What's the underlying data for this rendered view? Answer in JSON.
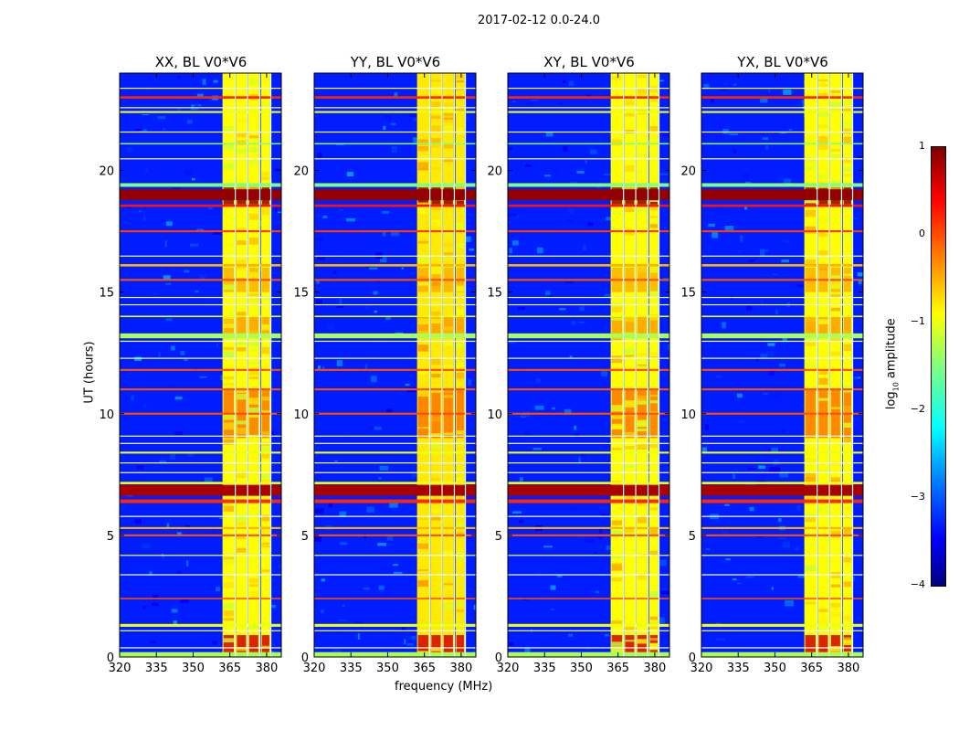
{
  "suptitle": "2017-02-12 0.0-24.0",
  "chart_data": {
    "type": "heatmap",
    "title": "2017-02-12 0.0-24.0",
    "xlabel": "frequency (MHz)",
    "ylabel": "UT (hours)",
    "xlim": [
      320,
      386
    ],
    "ylim": [
      0,
      24
    ],
    "xticks": [
      320,
      335,
      350,
      365,
      380
    ],
    "yticks": [
      0,
      5,
      10,
      15,
      20
    ],
    "panels": [
      {
        "title": "XX, BL V0*V6",
        "band_level": -0.9
      },
      {
        "title": "YY, BL V0*V6",
        "band_level": -0.8
      },
      {
        "title": "XY, BL V0*V6",
        "band_level": -0.9
      },
      {
        "title": "YX, BL V0*V6",
        "band_level": -0.9
      }
    ],
    "background_level": -3.3,
    "vertical_bands": [
      [
        362,
        367
      ],
      [
        367.5,
        372
      ],
      [
        372.5,
        377
      ],
      [
        377.7,
        381.5
      ]
    ],
    "band_patches": [
      {
        "t0": 0.15,
        "t1": 0.9,
        "v": 0.6
      },
      {
        "t0": 9.0,
        "t1": 11.0,
        "v": -0.2
      },
      {
        "t0": 13.3,
        "t1": 14.0,
        "v": -0.4
      },
      {
        "t0": 15.0,
        "t1": 16.0,
        "v": -0.5
      },
      {
        "t0": 18.6,
        "t1": 19.3,
        "v": 0.95
      }
    ],
    "horizontal_lines": [
      {
        "t": 19.0,
        "w": 0.45,
        "v": 0.9
      },
      {
        "t": 18.55,
        "w": 0.1,
        "v": 0.3
      },
      {
        "t": 19.4,
        "w": 0.15,
        "v": -1.5
      },
      {
        "t": 6.85,
        "w": 0.45,
        "v": 0.8
      },
      {
        "t": 7.15,
        "w": 0.1,
        "v": -1
      },
      {
        "t": 6.4,
        "w": 0.15,
        "v": 0.2
      },
      {
        "t": 10.0,
        "w": 0.08,
        "v": 0
      },
      {
        "t": 11.0,
        "w": 0.08,
        "v": 0
      },
      {
        "t": 11.8,
        "w": 0.08,
        "v": 0
      },
      {
        "t": 2.4,
        "w": 0.06,
        "v": 0
      },
      {
        "t": 17.5,
        "w": 0.08,
        "v": 0.1
      },
      {
        "t": 15.5,
        "w": 0.08,
        "v": 0
      },
      {
        "t": 16.1,
        "w": 0.1,
        "v": -0.5
      },
      {
        "t": 23.0,
        "w": 0.1,
        "v": 0.2
      },
      {
        "t": 22.4,
        "w": 0.08,
        "v": -1
      },
      {
        "t": 13.2,
        "w": 0.2,
        "v": -1.3
      },
      {
        "t": 1.3,
        "w": 0.12,
        "v": -1
      },
      {
        "t": 0.1,
        "w": 0.2,
        "v": -1.3
      },
      {
        "t": 5.0,
        "w": 0.08,
        "v": 0
      },
      {
        "t": 5.3,
        "w": 0.08,
        "v": -0.5
      },
      {
        "t": 8.4,
        "w": 0.08,
        "v": -1
      },
      {
        "t": 14.0,
        "w": 0.06,
        "v": -1
      },
      {
        "t": 21.1,
        "w": 0.05,
        "v": -1.5
      }
    ],
    "flagged_rows": [
      23.4,
      13.0,
      1.1,
      8.0,
      4.2,
      3.4,
      9.1,
      12.3,
      14.5,
      20.5,
      21.6,
      16.5,
      5.8,
      0.4,
      7.6,
      8.8,
      14.8,
      22.6
    ],
    "colorbar": {
      "label": "log10 amplitude",
      "range": [
        -4,
        1
      ],
      "ticks": [
        "1",
        "0",
        "−1",
        "−2",
        "−3",
        "−4"
      ]
    }
  }
}
